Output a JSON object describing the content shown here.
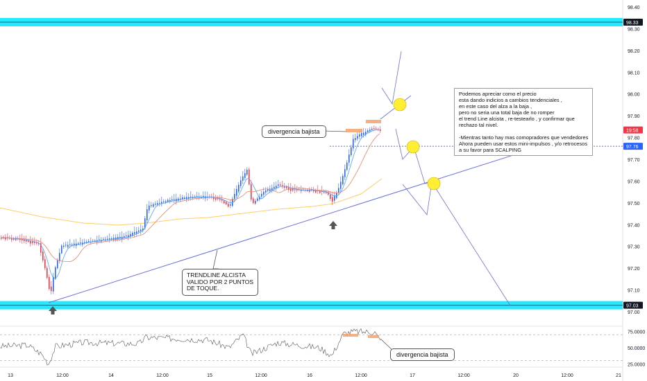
{
  "chart_data": {
    "type": "candlestick",
    "y_axis": {
      "ticks": [
        "98.40",
        "98.30",
        "98.20",
        "98.10",
        "98.00",
        "97.90",
        "97.80",
        "97.70",
        "97.60",
        "97.50",
        "97.40",
        "97.30",
        "97.20",
        "97.10",
        "97.00"
      ],
      "range": [
        96.95,
        98.44
      ]
    },
    "x_axis": {
      "ticks": [
        "13",
        "12:00",
        "14",
        "12:00",
        "15",
        "12:00",
        "16",
        "12:00",
        "17",
        "12:00",
        "20",
        "12:00",
        "21"
      ]
    },
    "price_badges": [
      {
        "label": "98.33",
        "color": "#131722",
        "level": 98.33
      },
      {
        "label": "19:58",
        "color": "#f23645",
        "level": 97.835
      },
      {
        "label": "97.76",
        "color": "#2962ff",
        "level": 97.76
      },
      {
        "label": "97.03",
        "color": "#131722",
        "level": 97.03
      }
    ],
    "resistance_band": 98.33,
    "support_band": 97.03,
    "dotted_level": 97.76,
    "oscillator": {
      "ticks": [
        "75.0000",
        "50.0000",
        "25.0000"
      ],
      "range": [
        20,
        82
      ],
      "levels": [
        70,
        30
      ]
    }
  },
  "annotations": {
    "divergence_top": "divergencia bajista",
    "divergence_bottom": "divergencia bajista",
    "trendline_label": "TRENDLINE ALCISTA\nVALIDO POR 2 PUNTOS\nDE TOQUE.",
    "note": "Podemos apreciar como el precio\nesta dando indicios a cambios tendenciales ,\nen este caso del alza a la baja ,\npero no seria una total baja de no romper\nel trend Line alcista , re-testearlo , y confirmar que\nrechazo tal nivel.\n\n-Mientras tanto hay mas comopradores que vendedores\nAhora pueden usar estos mini-impulsos , y/o retrocesos\na su favor para SCALPING"
  },
  "colors": {
    "bull": "#2962ff",
    "bear": "#f23645",
    "band": "#00e5ff",
    "trend": "#6a6fdb",
    "ma_slow": "#ffcc66",
    "ma_fast": "#f08060",
    "ma_mid": "#4d9fff",
    "highlight": "#f5a26a",
    "circle": "#ffee33"
  }
}
